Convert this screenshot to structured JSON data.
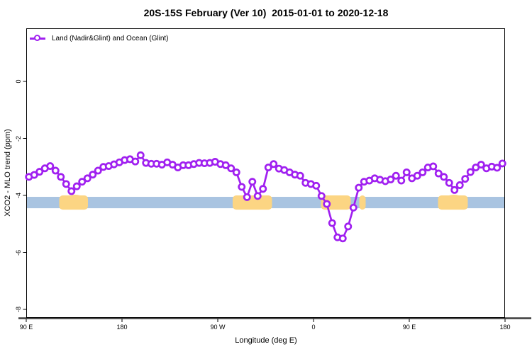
{
  "title": "20S-15S February (Ver 10)  2015-01-01 to 2020-12-18",
  "legend": {
    "items": [
      {
        "label": "Land (Nadir&Glint) and Ocean (Glint)",
        "marker": "open-circle-on-line",
        "color": "#a020f0"
      }
    ]
  },
  "colors": {
    "line": "#a020f0",
    "marker_fill": "#ffffff",
    "ocean_band": "#a9c4e1",
    "land_patch": "#fcd583",
    "axis": "#000000",
    "bottom_rule": "#3c3c3c",
    "background": "#ffffff"
  },
  "chart_data": {
    "type": "line",
    "title": "20S-15S February (Ver 10)  2015-01-01 to 2020-12-18",
    "xlabel": "Longitude (deg E)",
    "ylabel": "XCO2 - MLO trend (ppm)",
    "x_ticks": [
      {
        "lon": 90,
        "label": "90 E"
      },
      {
        "lon": 180,
        "label": "180"
      },
      {
        "lon": 270,
        "label": "90 W"
      },
      {
        "lon": 360,
        "label": "0"
      },
      {
        "lon": 450,
        "label": "90 E"
      },
      {
        "lon": 540,
        "label": "180"
      }
    ],
    "y_ticks": [
      {
        "value": 0,
        "label": "0"
      },
      {
        "value": -2,
        "label": "-2"
      },
      {
        "value": -4,
        "label": "-4"
      },
      {
        "value": -6,
        "label": "-6"
      },
      {
        "value": -8,
        "label": "-8"
      }
    ],
    "x_domain_continuous_deg": [
      90,
      540
    ],
    "ylim": [
      -8.3,
      1.9
    ],
    "grid": false,
    "legend_position": "topleft",
    "series": [
      {
        "name": "Land (Nadir&Glint) and Ocean (Glint)",
        "marker": "open-circle",
        "lons": [
          92.5,
          97.5,
          102.5,
          107.5,
          112.5,
          117.5,
          122.5,
          127.5,
          132.5,
          137.5,
          142.5,
          147.5,
          152.5,
          157.5,
          162.5,
          167.5,
          172.5,
          177.5,
          182.5,
          187.5,
          192.5,
          197.5,
          202.5,
          207.5,
          212.5,
          217.5,
          222.5,
          227.5,
          232.5,
          237.5,
          242.5,
          247.5,
          252.5,
          257.5,
          262.5,
          267.5,
          272.5,
          277.5,
          282.5,
          287.5,
          292.5,
          297.5,
          302.5,
          307.5,
          312.5,
          317.5,
          322.5,
          327.5,
          332.5,
          337.5,
          342.5,
          347.5,
          352.5,
          357.5,
          362.5,
          367.5,
          372.5,
          377.5,
          382.5,
          387.5,
          392.5,
          397.5,
          402.5,
          407.5,
          412.5,
          417.5,
          422.5,
          427.5,
          432.5,
          437.5,
          442.5,
          447.5,
          452.5,
          457.5,
          462.5,
          467.5,
          472.5,
          477.5,
          482.5,
          487.5,
          492.5,
          497.5,
          502.5,
          507.5,
          512.5,
          517.5,
          522.5,
          527.5,
          532.5,
          537.5
        ],
        "values": [
          -3.35,
          -3.28,
          -3.17,
          -3.05,
          -2.97,
          -3.13,
          -3.35,
          -3.6,
          -3.85,
          -3.68,
          -3.52,
          -3.4,
          -3.27,
          -3.13,
          -3.0,
          -2.97,
          -2.91,
          -2.84,
          -2.76,
          -2.73,
          -2.81,
          -2.59,
          -2.86,
          -2.89,
          -2.89,
          -2.92,
          -2.84,
          -2.92,
          -3.02,
          -2.94,
          -2.94,
          -2.9,
          -2.86,
          -2.87,
          -2.86,
          -2.82,
          -2.9,
          -2.94,
          -3.05,
          -3.19,
          -3.7,
          -4.06,
          -3.52,
          -4.02,
          -3.77,
          -3.02,
          -2.9,
          -3.06,
          -3.11,
          -3.19,
          -3.27,
          -3.31,
          -3.56,
          -3.6,
          -3.66,
          -4.02,
          -4.3,
          -4.97,
          -5.47,
          -5.51,
          -5.09,
          -4.43,
          -3.73,
          -3.52,
          -3.48,
          -3.4,
          -3.45,
          -3.5,
          -3.44,
          -3.31,
          -3.48,
          -3.19,
          -3.4,
          -3.31,
          -3.19,
          -3.02,
          -2.98,
          -3.23,
          -3.35,
          -3.56,
          -3.81,
          -3.64,
          -3.42,
          -3.18,
          -3.02,
          -2.92,
          -3.05,
          -2.99,
          -3.03,
          -2.88
        ]
      }
    ],
    "ocean_band": {
      "value_top": -4.05,
      "value_bottom": -4.45,
      "lon_start": 90,
      "lon_end": 540
    },
    "land_patches": [
      {
        "lon_start": 121,
        "lon_end": 148,
        "bump_lon": 136
      },
      {
        "lon_start": 284,
        "lon_end": 321,
        "bump_lon": null
      },
      {
        "lon_start": 367,
        "lon_end": 395,
        "bump_lon": null
      },
      {
        "lon_start": 403,
        "lon_end": 409,
        "bump_lon": null
      },
      {
        "lon_start": 477,
        "lon_end": 505,
        "bump_lon": 492
      }
    ]
  }
}
